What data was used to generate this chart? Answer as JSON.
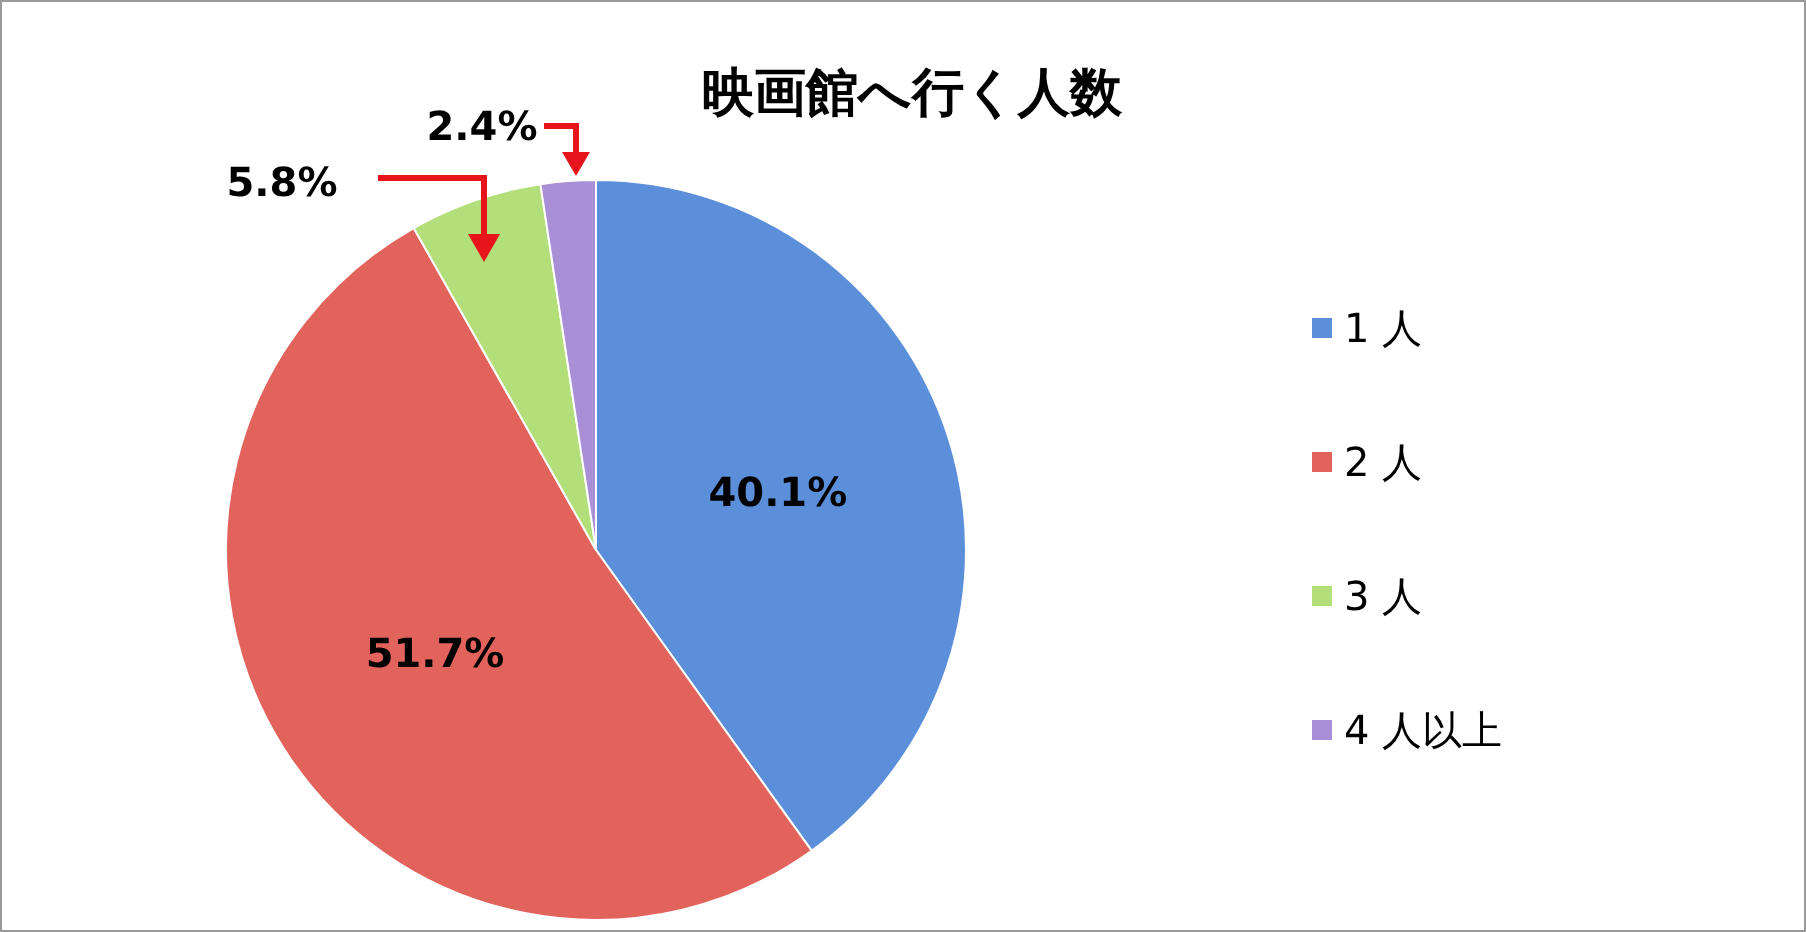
{
  "chart_data": {
    "type": "pie",
    "title": "映画館へ行く人数",
    "categories": [
      "1 人",
      "2 人",
      "3 人",
      "4 人以上"
    ],
    "values": [
      40.1,
      51.7,
      5.8,
      2.4
    ],
    "colors": [
      "#5b8fd9",
      "#e2625c",
      "#b3df7a",
      "#a88fd6"
    ],
    "value_labels": [
      "40.1%",
      "51.7%",
      "5.8%",
      "2.4%"
    ],
    "legend": "right"
  }
}
